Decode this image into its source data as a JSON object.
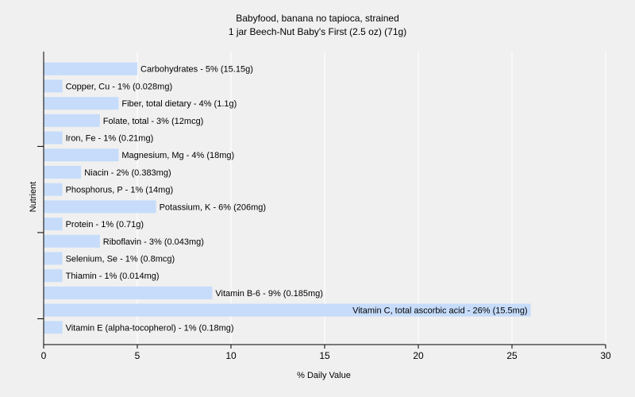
{
  "chart_data": {
    "type": "bar",
    "orientation": "horizontal",
    "title": "Babyfood, banana no tapioca, strained",
    "subtitle": "1 jar Beech-Nut Baby's First (2.5 oz) (71g)",
    "xlabel": "% Daily Value",
    "ylabel": "Nutrient",
    "xlim": [
      0,
      30
    ],
    "xticks": [
      0,
      5,
      10,
      15,
      20,
      25,
      30
    ],
    "grid": true,
    "bar_color": "#c6dcfa",
    "categories": [
      "Carbohydrates",
      "Copper, Cu",
      "Fiber, total dietary",
      "Folate, total",
      "Iron, Fe",
      "Magnesium, Mg",
      "Niacin",
      "Phosphorus, P",
      "Potassium, K",
      "Protein",
      "Riboflavin",
      "Selenium, Se",
      "Thiamin",
      "Vitamin B-6",
      "Vitamin C, total ascorbic acid",
      "Vitamin E (alpha-tocopherol)"
    ],
    "values": [
      5,
      1,
      4,
      3,
      1,
      4,
      2,
      1,
      6,
      1,
      3,
      1,
      1,
      9,
      26,
      1
    ],
    "labels": [
      "Carbohydrates - 5% (15.15g)",
      "Copper, Cu - 1% (0.028mg)",
      "Fiber, total dietary - 4% (1.1g)",
      "Folate, total - 3% (12mcg)",
      "Iron, Fe - 1% (0.21mg)",
      "Magnesium, Mg - 4% (18mg)",
      "Niacin - 2% (0.383mg)",
      "Phosphorus, P - 1% (14mg)",
      "Potassium, K - 6% (206mg)",
      "Protein - 1% (0.71g)",
      "Riboflavin - 3% (0.043mg)",
      "Selenium, Se - 1% (0.8mcg)",
      "Thiamin - 1% (0.014mg)",
      "Vitamin B-6 - 9% (0.185mg)",
      "Vitamin C, total ascorbic acid - 26% (15.5mg)",
      "Vitamin E (alpha-tocopherol) - 1% (0.18mg)"
    ]
  }
}
